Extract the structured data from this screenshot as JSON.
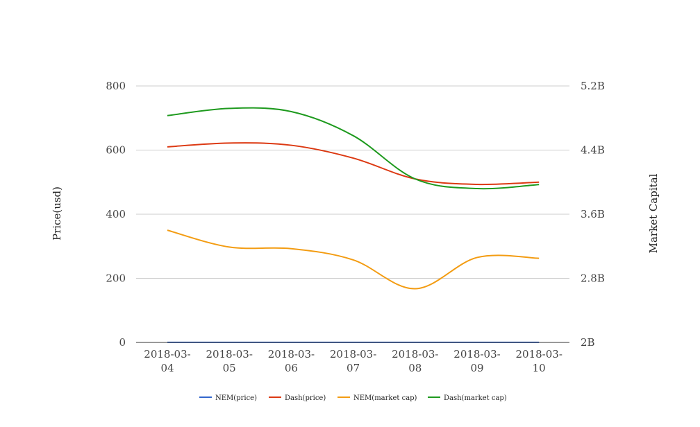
{
  "chart_data": {
    "type": "line",
    "categories": [
      "2018-03-04",
      "2018-03-05",
      "2018-03-06",
      "2018-03-07",
      "2018-03-08",
      "2018-03-09",
      "2018-03-10"
    ],
    "category_labels": [
      [
        "2018-03-",
        "04"
      ],
      [
        "2018-03-",
        "05"
      ],
      [
        "2018-03-",
        "06"
      ],
      [
        "2018-03-",
        "07"
      ],
      [
        "2018-03-",
        "08"
      ],
      [
        "2018-03-",
        "09"
      ],
      [
        "2018-03-",
        "10"
      ]
    ],
    "y_left": {
      "label": "Price(usd)",
      "range": [
        0,
        800
      ],
      "ticks": [
        0,
        200,
        400,
        600,
        800
      ],
      "tick_labels": [
        "0",
        "200",
        "400",
        "600",
        "800"
      ]
    },
    "y_right": {
      "label": "Market Capital",
      "range": [
        2000000000,
        5200000000
      ],
      "ticks": [
        2000000000,
        2800000000,
        3600000000,
        4400000000,
        5200000000
      ],
      "tick_labels": [
        "2B",
        "2.8B",
        "3.6B",
        "4.4B",
        "5.2B"
      ]
    },
    "grid": true,
    "legend_position": "bottom",
    "series": [
      {
        "name": "NEM(price)",
        "axis": "left",
        "color": "#3366cc",
        "values": [
          0.35,
          0.34,
          0.33,
          0.32,
          0.28,
          0.31,
          0.3
        ]
      },
      {
        "name": "Dash(price)",
        "axis": "left",
        "color": "#dc3912",
        "values": [
          610,
          622,
          615,
          575,
          510,
          493,
          500
        ]
      },
      {
        "name": "NEM(market cap)",
        "axis": "right",
        "color": "#f39c12",
        "values": [
          3400000000,
          3190000000,
          3170000000,
          3030000000,
          2670000000,
          3060000000,
          3050000000
        ]
      },
      {
        "name": "Dash(market cap)",
        "axis": "right",
        "color": "#1e9a1e",
        "values": [
          4830000000,
          4920000000,
          4880000000,
          4580000000,
          4040000000,
          3920000000,
          3970000000
        ]
      }
    ]
  }
}
